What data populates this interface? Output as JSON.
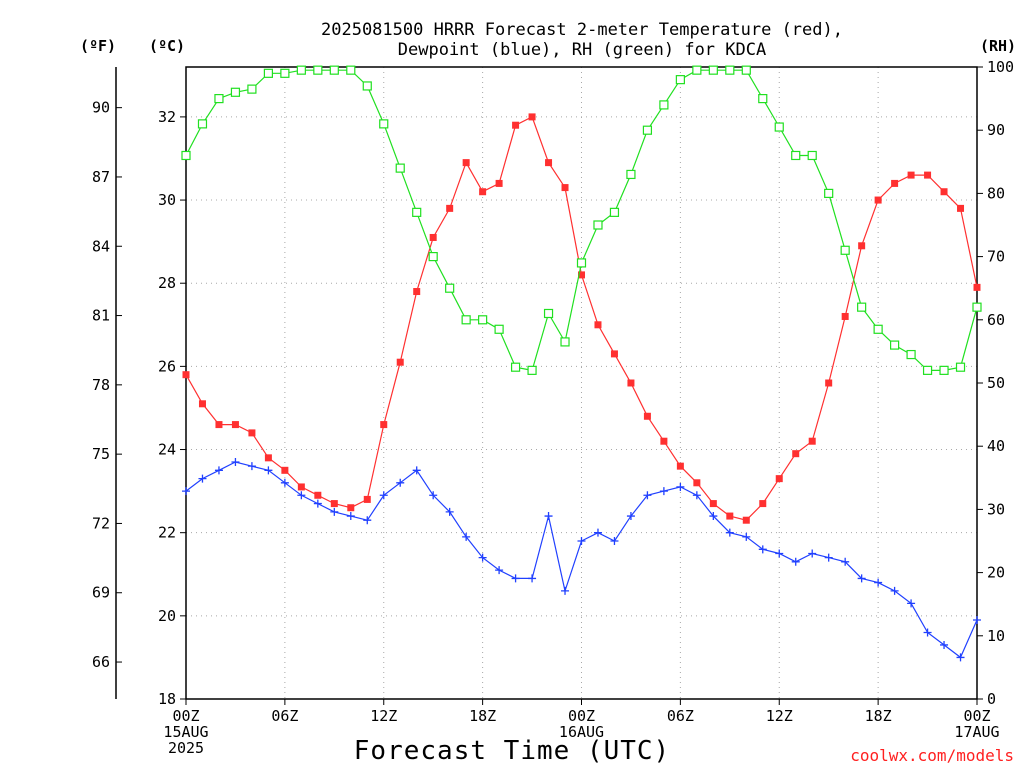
{
  "chart_data": {
    "type": "line",
    "title_line1": "2025081500 HRRR Forecast 2-meter Temperature (red),",
    "title_line2": "Dewpoint (blue), RH (green) for KDCA",
    "xlabel": "Forecast Time (UTC)",
    "credit": "coolwx.com/models",
    "axes": {
      "left_outer_label": "(ºF)",
      "left_inner_label": "(ºC)",
      "right_label": "(RH)",
      "fahrenheit_ticks": [
        66,
        69,
        72,
        75,
        78,
        81,
        84,
        87,
        90
      ],
      "celsius_ticks": [
        18,
        20,
        22,
        24,
        26,
        28,
        30,
        32
      ],
      "rh_ticks": [
        0,
        10,
        20,
        30,
        40,
        50,
        60,
        70,
        80,
        90,
        100
      ],
      "ylim_celsius": [
        18,
        33.2
      ],
      "ylim_rh": [
        0,
        100
      ],
      "xlim_hours": [
        0,
        48
      ],
      "grid": true
    },
    "x_ticks": [
      {
        "line1": "00Z",
        "line2": "15AUG",
        "line3": "2025"
      },
      {
        "line1": "06Z",
        "line2": "",
        "line3": ""
      },
      {
        "line1": "12Z",
        "line2": "",
        "line3": ""
      },
      {
        "line1": "18Z",
        "line2": "",
        "line3": ""
      },
      {
        "line1": "00Z",
        "line2": "16AUG",
        "line3": ""
      },
      {
        "line1": "06Z",
        "line2": "",
        "line3": ""
      },
      {
        "line1": "12Z",
        "line2": "",
        "line3": ""
      },
      {
        "line1": "18Z",
        "line2": "",
        "line3": ""
      },
      {
        "line1": "00Z",
        "line2": "17AUG",
        "line3": ""
      }
    ],
    "series": [
      {
        "name": "Temperature",
        "color": "#ff3030",
        "marker": "filled-square",
        "axis": "celsius",
        "values": [
          25.8,
          25.1,
          24.6,
          24.6,
          24.4,
          23.8,
          23.5,
          23.1,
          22.9,
          22.7,
          22.6,
          22.8,
          24.6,
          26.1,
          27.8,
          29.1,
          29.8,
          30.9,
          30.2,
          30.4,
          31.8,
          32.0,
          30.9,
          30.3,
          28.2,
          27.0,
          26.3,
          25.6,
          24.8,
          24.2,
          23.6,
          23.2,
          22.7,
          22.4,
          22.3,
          22.7,
          23.3,
          23.9,
          24.2,
          25.6,
          27.2,
          28.9,
          30.0,
          30.4,
          30.6,
          30.6,
          30.2,
          29.8,
          27.9
        ]
      },
      {
        "name": "Dewpoint",
        "color": "#2040ff",
        "marker": "plus",
        "axis": "celsius",
        "values": [
          23.0,
          23.3,
          23.5,
          23.7,
          23.6,
          23.5,
          23.2,
          22.9,
          22.7,
          22.5,
          22.4,
          22.3,
          22.9,
          23.2,
          23.5,
          22.9,
          22.5,
          21.9,
          21.4,
          21.1,
          20.9,
          20.9,
          22.4,
          20.6,
          21.8,
          22.0,
          21.8,
          22.4,
          22.9,
          23.0,
          23.1,
          22.9,
          22.4,
          22.0,
          21.9,
          21.6,
          21.5,
          21.3,
          21.5,
          21.4,
          21.3,
          20.9,
          20.8,
          20.6,
          20.3,
          19.6,
          19.3,
          19.0,
          19.9
        ]
      },
      {
        "name": "RH",
        "color": "#20e020",
        "marker": "open-square",
        "axis": "rh",
        "values": [
          86,
          91,
          95,
          96,
          96.5,
          99,
          99,
          99.5,
          99.5,
          99.5,
          99.5,
          97,
          91,
          84,
          77,
          70,
          65,
          60,
          60,
          58.5,
          52.5,
          52,
          61,
          56.5,
          69,
          75,
          77,
          83,
          90,
          94,
          98,
          99.5,
          99.5,
          99.5,
          99.5,
          95,
          90.5,
          86,
          86,
          80,
          71,
          62,
          58.5,
          56,
          54.5,
          52,
          52,
          52.5,
          62
        ]
      }
    ]
  }
}
